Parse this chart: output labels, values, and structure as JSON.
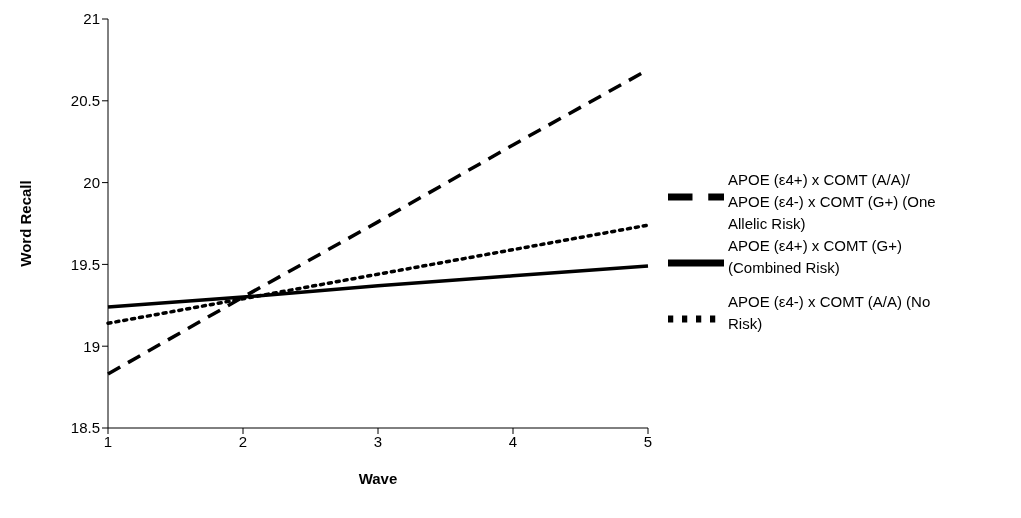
{
  "chart_data": {
    "type": "line",
    "xlabel": "Wave",
    "ylabel": "Word Recall",
    "categories": [
      "1",
      "2",
      "3",
      "4",
      "5"
    ],
    "series": [
      {
        "name": "APOE (ε4-) x COMT (A/A) (No Risk)",
        "color": "#000000",
        "line_style": "dotted",
        "values": [
          19.14,
          19.29,
          19.44,
          19.59,
          19.74
        ]
      },
      {
        "name": "APOE (ε4+) x COMT (A/A)/ APOE (ε4-) x COMT (G+) (One Allelic Risk)",
        "color": "#000000",
        "line_style": "dashed",
        "values": [
          18.83,
          19.3,
          19.76,
          20.23,
          20.69
        ]
      },
      {
        "name": "APOE (ε4+) x COMT (G+) (Combined Risk)",
        "color": "#000000",
        "line_style": "solid",
        "values": [
          19.24,
          19.3,
          19.37,
          19.43,
          19.49
        ]
      }
    ],
    "ylim": [
      18.5,
      21
    ],
    "yticks": [
      18.5,
      19,
      19.5,
      20,
      20.5,
      21
    ],
    "grid": false,
    "legend": "right",
    "marker": "none"
  }
}
